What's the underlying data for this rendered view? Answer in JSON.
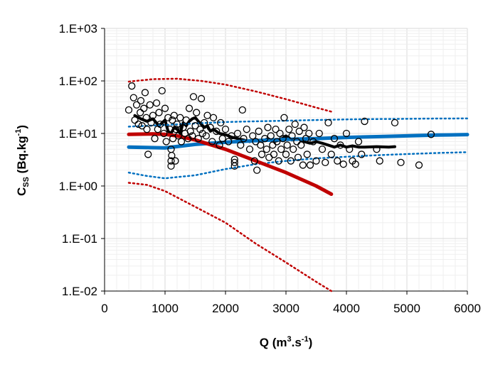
{
  "chart_data": {
    "type": "scatter",
    "x_axis": {
      "label_main": "Q (m",
      "label_sup": "3",
      "label_mid": ".s",
      "label_sup2": "-1",
      "label_end": ")",
      "ticks": [
        0,
        1000,
        2000,
        3000,
        4000,
        5000,
        6000
      ],
      "tick_labels": [
        "0",
        "1000",
        "2000",
        "3000",
        "4000",
        "5000",
        "6000"
      ],
      "range": [
        0,
        6000
      ]
    },
    "y_axis": {
      "label_main": "C",
      "label_sub": "SS",
      "label_mid": " (Bq.kg",
      "label_sup": "-1",
      "label_end": ")",
      "scale": "log",
      "ticks": [
        0.01,
        0.1,
        1,
        10,
        100,
        1000
      ],
      "tick_labels": [
        "1.E-02",
        "1.E-01",
        "1.E+00",
        "1.E+01",
        "1.E+02",
        "1.E+03"
      ],
      "range": [
        0.01,
        1000
      ]
    },
    "grid": "minor gridlines on both axes",
    "series": [
      {
        "kind": "points",
        "color": "#000000",
        "points": [
          [
            400,
            28
          ],
          [
            450,
            80
          ],
          [
            480,
            48
          ],
          [
            500,
            18
          ],
          [
            530,
            35
          ],
          [
            560,
            15
          ],
          [
            590,
            25
          ],
          [
            600,
            42
          ],
          [
            620,
            14
          ],
          [
            650,
            30
          ],
          [
            670,
            60
          ],
          [
            690,
            20
          ],
          [
            700,
            12
          ],
          [
            720,
            4
          ],
          [
            750,
            35
          ],
          [
            770,
            16
          ],
          [
            800,
            22
          ],
          [
            830,
            8
          ],
          [
            860,
            38
          ],
          [
            880,
            12
          ],
          [
            900,
            25
          ],
          [
            920,
            15
          ],
          [
            950,
            65
          ],
          [
            980,
            10
          ],
          [
            1000,
            30
          ],
          [
            1020,
            7
          ],
          [
            1050,
            20
          ],
          [
            1080,
            12
          ],
          [
            1100,
            5
          ],
          [
            1100,
            3
          ],
          [
            1100,
            2.4
          ],
          [
            1110,
            3.8
          ],
          [
            1120,
            18
          ],
          [
            1130,
            8
          ],
          [
            1150,
            22
          ],
          [
            1170,
            3
          ],
          [
            1180,
            12
          ],
          [
            1200,
            15
          ],
          [
            1220,
            9
          ],
          [
            1250,
            20
          ],
          [
            1270,
            7
          ],
          [
            1300,
            13
          ],
          [
            1330,
            10
          ],
          [
            1350,
            18
          ],
          [
            1380,
            8
          ],
          [
            1400,
            30
          ],
          [
            1420,
            11
          ],
          [
            1450,
            9
          ],
          [
            1470,
            50
          ],
          [
            1500,
            14
          ],
          [
            1520,
            25
          ],
          [
            1550,
            8
          ],
          [
            1580,
            12
          ],
          [
            1600,
            46
          ],
          [
            1620,
            10
          ],
          [
            1650,
            16
          ],
          [
            1680,
            9
          ],
          [
            1700,
            22
          ],
          [
            1750,
            13
          ],
          [
            1780,
            7
          ],
          [
            1800,
            20
          ],
          [
            1850,
            11
          ],
          [
            1900,
            6
          ],
          [
            1920,
            16
          ],
          [
            1950,
            8
          ],
          [
            2000,
            12
          ],
          [
            2050,
            7
          ],
          [
            2100,
            9
          ],
          [
            2150,
            3.2
          ],
          [
            2150,
            2.8
          ],
          [
            2150,
            2.4
          ],
          [
            2200,
            10
          ],
          [
            2250,
            6
          ],
          [
            2280,
            28
          ],
          [
            2300,
            8
          ],
          [
            2350,
            12
          ],
          [
            2400,
            5
          ],
          [
            2450,
            9
          ],
          [
            2480,
            3
          ],
          [
            2500,
            7
          ],
          [
            2520,
            2
          ],
          [
            2550,
            11
          ],
          [
            2580,
            6
          ],
          [
            2600,
            4
          ],
          [
            2650,
            8
          ],
          [
            2680,
            5
          ],
          [
            2700,
            13
          ],
          [
            2720,
            3.5
          ],
          [
            2750,
            9
          ],
          [
            2780,
            6
          ],
          [
            2800,
            4
          ],
          [
            2830,
            12
          ],
          [
            2850,
            7
          ],
          [
            2880,
            3
          ],
          [
            2900,
            10
          ],
          [
            2920,
            5
          ],
          [
            2950,
            8
          ],
          [
            2970,
            20
          ],
          [
            3000,
            4
          ],
          [
            3020,
            6
          ],
          [
            3050,
            12
          ],
          [
            3080,
            3
          ],
          [
            3100,
            9
          ],
          [
            3120,
            5
          ],
          [
            3150,
            15
          ],
          [
            3180,
            7
          ],
          [
            3200,
            3.5
          ],
          [
            3220,
            11
          ],
          [
            3250,
            6
          ],
          [
            3280,
            2.5
          ],
          [
            3300,
            13
          ],
          [
            3330,
            8
          ],
          [
            3350,
            4
          ],
          [
            3380,
            10
          ],
          [
            3400,
            2.5
          ],
          [
            3450,
            7
          ],
          [
            3500,
            3
          ],
          [
            3550,
            10
          ],
          [
            3600,
            5
          ],
          [
            3650,
            2.8
          ],
          [
            3700,
            16
          ],
          [
            3750,
            4
          ],
          [
            3800,
            8
          ],
          [
            3850,
            3
          ],
          [
            3900,
            6
          ],
          [
            3950,
            2.6
          ],
          [
            4000,
            10
          ],
          [
            4050,
            5
          ],
          [
            4100,
            3
          ],
          [
            4150,
            2.6
          ],
          [
            4200,
            7
          ],
          [
            4250,
            4
          ],
          [
            4300,
            17
          ],
          [
            4500,
            5
          ],
          [
            4550,
            3
          ],
          [
            4800,
            16
          ],
          [
            4900,
            2.8
          ],
          [
            5200,
            2.5
          ],
          [
            5400,
            9.6
          ]
        ]
      },
      {
        "kind": "line",
        "color": "#000000",
        "style": "solid",
        "width": 4,
        "points": [
          [
            500,
            22
          ],
          [
            600,
            19
          ],
          [
            700,
            17
          ],
          [
            800,
            19
          ],
          [
            900,
            14
          ],
          [
            1000,
            18
          ],
          [
            1050,
            11
          ],
          [
            1100,
            10
          ],
          [
            1150,
            13
          ],
          [
            1200,
            12
          ],
          [
            1250,
            10
          ],
          [
            1300,
            16
          ],
          [
            1350,
            14
          ],
          [
            1400,
            17
          ],
          [
            1450,
            19
          ],
          [
            1500,
            20
          ],
          [
            1550,
            17
          ],
          [
            1600,
            15
          ],
          [
            1650,
            13
          ],
          [
            1700,
            14
          ],
          [
            1750,
            11
          ],
          [
            1800,
            12
          ],
          [
            1900,
            10
          ],
          [
            2000,
            9.5
          ],
          [
            2100,
            8.5
          ],
          [
            2200,
            8
          ],
          [
            2300,
            7.5
          ],
          [
            2400,
            7
          ],
          [
            2500,
            7.5
          ],
          [
            2600,
            7
          ],
          [
            2700,
            8
          ],
          [
            2800,
            7
          ],
          [
            2900,
            7.5
          ],
          [
            3000,
            9
          ],
          [
            3100,
            7.5
          ],
          [
            3200,
            8
          ],
          [
            3300,
            7
          ],
          [
            3400,
            6.5
          ],
          [
            3500,
            7
          ],
          [
            3600,
            6.5
          ],
          [
            3700,
            6
          ],
          [
            3800,
            5.5
          ],
          [
            3900,
            6
          ],
          [
            4000,
            5.5
          ],
          [
            4100,
            5.8
          ],
          [
            4200,
            5.5
          ],
          [
            4300,
            5.5
          ],
          [
            4500,
            5.6
          ],
          [
            4700,
            5.5
          ],
          [
            4800,
            5.6
          ]
        ]
      },
      {
        "kind": "line",
        "color": "#0070C0",
        "style": "solid",
        "width": 5,
        "points": [
          [
            400,
            5.5
          ],
          [
            1000,
            5.3
          ],
          [
            1500,
            6.2
          ],
          [
            2000,
            6.8
          ],
          [
            2500,
            7.3
          ],
          [
            3000,
            7.7
          ],
          [
            3500,
            8.0
          ],
          [
            4000,
            8.4
          ],
          [
            4500,
            8.7
          ],
          [
            5000,
            9.0
          ],
          [
            5500,
            9.3
          ],
          [
            6000,
            9.5
          ]
        ]
      },
      {
        "kind": "line",
        "color": "#0070C0",
        "style": "dotted",
        "width": 2.5,
        "points": [
          [
            400,
            13.5
          ],
          [
            1000,
            14.5
          ],
          [
            1500,
            15.5
          ],
          [
            2000,
            16.5
          ],
          [
            2500,
            17
          ],
          [
            3000,
            17.5
          ],
          [
            3500,
            18
          ],
          [
            4000,
            18.5
          ],
          [
            4500,
            18.8
          ],
          [
            5000,
            19
          ],
          [
            5500,
            19.2
          ],
          [
            6000,
            19.3
          ]
        ]
      },
      {
        "kind": "line",
        "color": "#0070C0",
        "style": "dotted",
        "width": 2.5,
        "points": [
          [
            400,
            1.8
          ],
          [
            700,
            1.55
          ],
          [
            1000,
            1.4
          ],
          [
            1500,
            1.6
          ],
          [
            2000,
            2.1
          ],
          [
            2500,
            2.6
          ],
          [
            3000,
            3.0
          ],
          [
            3500,
            3.35
          ],
          [
            4000,
            3.6
          ],
          [
            4500,
            3.85
          ],
          [
            5000,
            4.05
          ],
          [
            5500,
            4.25
          ],
          [
            6000,
            4.4
          ]
        ]
      },
      {
        "kind": "line",
        "color": "#C00000",
        "style": "solid",
        "width": 5,
        "points": [
          [
            400,
            9.6
          ],
          [
            800,
            9.8
          ],
          [
            1000,
            9.6
          ],
          [
            1200,
            9
          ],
          [
            1500,
            7.5
          ],
          [
            2000,
            5
          ],
          [
            2500,
            3
          ],
          [
            3000,
            1.8
          ],
          [
            3500,
            1.0
          ],
          [
            3750,
            0.7
          ]
        ]
      },
      {
        "kind": "line",
        "color": "#C00000",
        "style": "dotted",
        "width": 2.5,
        "points": [
          [
            400,
            97
          ],
          [
            800,
            108
          ],
          [
            1200,
            110
          ],
          [
            1600,
            100
          ],
          [
            2000,
            85
          ],
          [
            2500,
            63
          ],
          [
            3000,
            45
          ],
          [
            3500,
            31
          ],
          [
            3750,
            26
          ]
        ]
      },
      {
        "kind": "line",
        "color": "#C00000",
        "style": "dotted",
        "width": 2.5,
        "points": [
          [
            400,
            1.15
          ],
          [
            700,
            1.05
          ],
          [
            1000,
            0.8
          ],
          [
            1500,
            0.4
          ],
          [
            2000,
            0.2
          ],
          [
            2500,
            0.08
          ],
          [
            3000,
            0.035
          ],
          [
            3500,
            0.015
          ],
          [
            3750,
            0.01
          ]
        ]
      }
    ]
  }
}
